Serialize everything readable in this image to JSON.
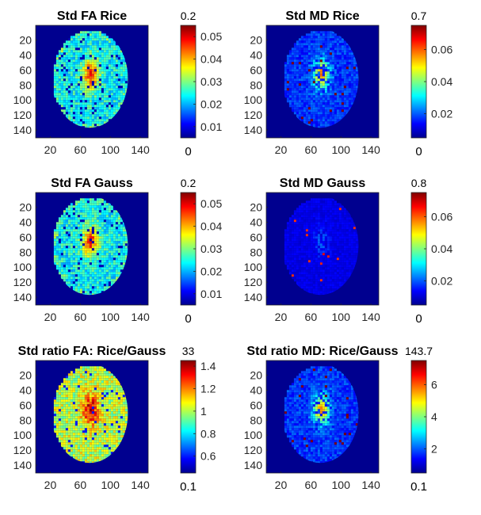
{
  "chart_data": [
    {
      "type": "heatmap",
      "title": "Std FA Rice",
      "xticks": [
        "20",
        "60",
        "100",
        "140"
      ],
      "yticks": [
        "20",
        "40",
        "60",
        "80",
        "100",
        "120",
        "140"
      ],
      "colorbar": {
        "top_label": "0.2",
        "bottom_label": "0",
        "ticks": [
          "0.05",
          "0.04",
          "0.03",
          "0.02",
          "0.01"
        ],
        "range": [
          0.005,
          0.055
        ]
      },
      "pattern": "dense"
    },
    {
      "type": "heatmap",
      "title": "Std MD Rice",
      "xticks": [
        "20",
        "60",
        "100",
        "140"
      ],
      "yticks": [
        "20",
        "40",
        "60",
        "80",
        "100",
        "120",
        "140"
      ],
      "colorbar": {
        "top_label": "0.7",
        "bottom_label": "0",
        "ticks": [
          "0.06",
          "0.04",
          "0.02"
        ],
        "range": [
          0.005,
          0.075
        ]
      },
      "pattern": "sparse"
    },
    {
      "type": "heatmap",
      "title": "Std FA Gauss",
      "xticks": [
        "20",
        "60",
        "100",
        "140"
      ],
      "yticks": [
        "20",
        "40",
        "60",
        "80",
        "100",
        "120",
        "140"
      ],
      "colorbar": {
        "top_label": "0.2",
        "bottom_label": "0",
        "ticks": [
          "0.05",
          "0.04",
          "0.03",
          "0.02",
          "0.01"
        ],
        "range": [
          0.005,
          0.055
        ]
      },
      "pattern": "dense"
    },
    {
      "type": "heatmap",
      "title": "Std MD Gauss",
      "xticks": [
        "20",
        "60",
        "100",
        "140"
      ],
      "yticks": [
        "20",
        "40",
        "60",
        "80",
        "100",
        "120",
        "140"
      ],
      "colorbar": {
        "top_label": "0.8",
        "bottom_label": "0",
        "ticks": [
          "0.06",
          "0.04",
          "0.02"
        ],
        "range": [
          0.005,
          0.075
        ]
      },
      "pattern": "faint"
    },
    {
      "type": "heatmap",
      "title": "Std ratio FA: Rice/Gauss",
      "xticks": [
        "20",
        "60",
        "100",
        "140"
      ],
      "yticks": [
        "20",
        "40",
        "60",
        "80",
        "100",
        "120",
        "140"
      ],
      "colorbar": {
        "top_label": "33",
        "bottom_label": "0.1",
        "ticks": [
          "1.4",
          "1.2",
          "1",
          "0.8",
          "0.6"
        ],
        "range": [
          0.45,
          1.45
        ]
      },
      "pattern": "ratio"
    },
    {
      "type": "heatmap",
      "title": "Std ratio MD: Rice/Gauss",
      "xticks": [
        "20",
        "60",
        "100",
        "140"
      ],
      "yticks": [
        "20",
        "40",
        "60",
        "80",
        "100",
        "120",
        "140"
      ],
      "colorbar": {
        "top_label": "143.7",
        "bottom_label": "0.1",
        "ticks": [
          "6",
          "4",
          "2"
        ],
        "range": [
          0.5,
          7.5
        ]
      },
      "pattern": "sparse"
    }
  ]
}
